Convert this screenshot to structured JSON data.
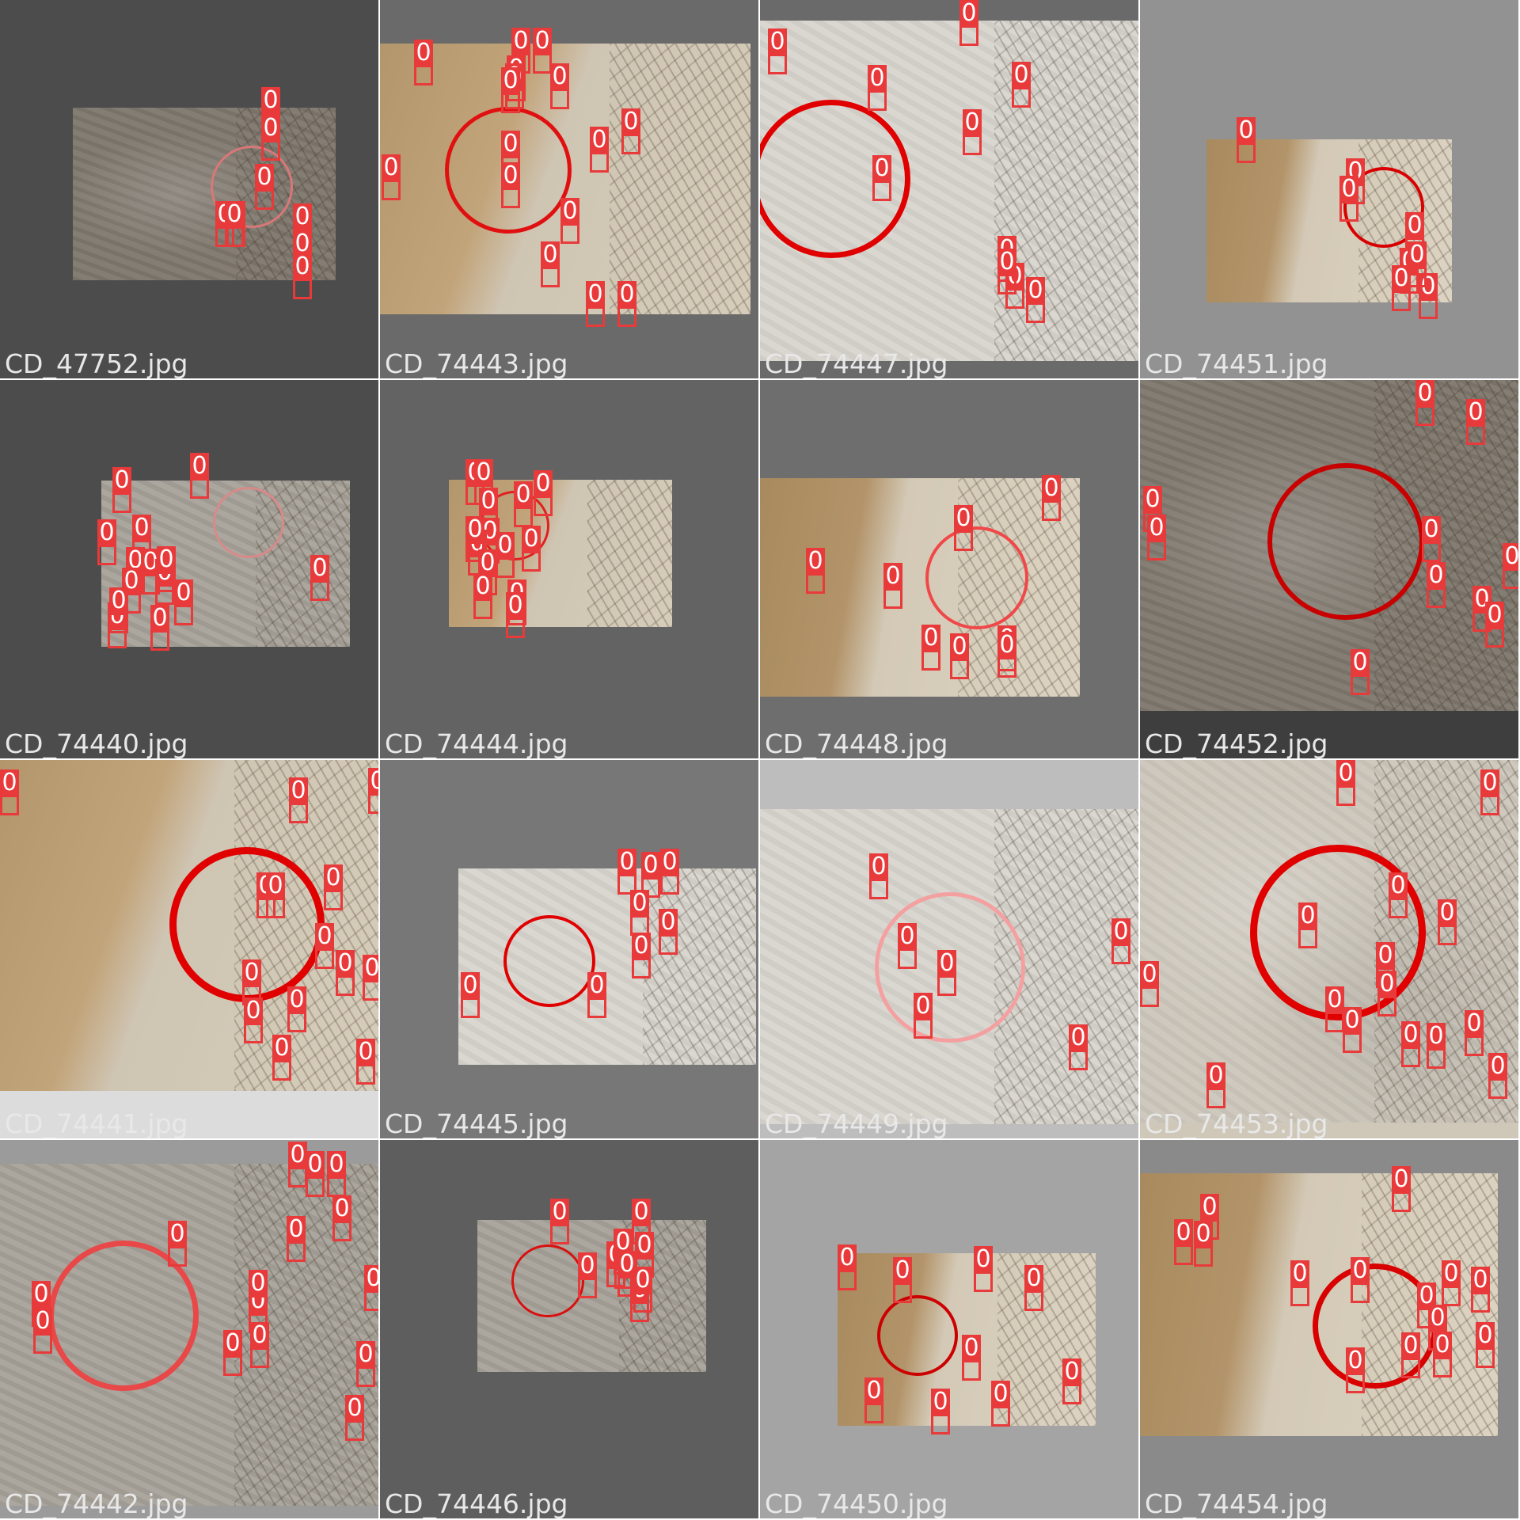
{
  "label_color": "#e83a3a",
  "class_label": "0",
  "tiles": [
    {
      "filename": "CD_47752.jpg",
      "bg": "#4c4c4c",
      "photo_style": "sand-c",
      "ring_color": "#d87878",
      "boxes": 9
    },
    {
      "filename": "CD_74443.jpg",
      "bg": "#6a6a6a",
      "photo_style": "sand-b",
      "ring_color": "#e01010",
      "boxes": 16
    },
    {
      "filename": "CD_74447.jpg",
      "bg": "#6a6a6a",
      "photo_style": "sand-d",
      "ring_color": "#e00000",
      "boxes": 10
    },
    {
      "filename": "CD_74451.jpg",
      "bg": "#929292",
      "photo_style": "sand-f",
      "ring_color": "#d80000",
      "boxes": 8
    },
    {
      "filename": "CD_74440.jpg",
      "bg": "#4c4c4c",
      "photo_style": "sand-e",
      "ring_color": "#d88a8a",
      "boxes": 14
    },
    {
      "filename": "CD_74444.jpg",
      "bg": "#636363",
      "photo_style": "sand-b",
      "ring_color": "#e02020",
      "boxes": 14
    },
    {
      "filename": "CD_74448.jpg",
      "bg": "#6e6e6e",
      "photo_style": "sand-f",
      "ring_color": "#f04848",
      "boxes": 8
    },
    {
      "filename": "CD_74452.jpg",
      "bg": "#3e3e3e",
      "photo_style": "sand-c",
      "ring_color": "#c80000",
      "boxes": 10
    },
    {
      "filename": "CD_74441.jpg",
      "bg": "#dcdcdc",
      "photo_style": "sand-b",
      "ring_color": "#e00000",
      "boxes": 14
    },
    {
      "filename": "CD_74445.jpg",
      "bg": "#777777",
      "photo_style": "sand-d",
      "ring_color": "#e00000",
      "boxes": 10
    },
    {
      "filename": "CD_74449.jpg",
      "bg": "#bdbdbd",
      "photo_style": "sand-d",
      "ring_color": "#f4a0a0",
      "boxes": 7
    },
    {
      "filename": "CD_74453.jpg",
      "bg": "#cfc7b8",
      "photo_style": "sand-a",
      "ring_color": "#e00000",
      "boxes": 15
    },
    {
      "filename": "CD_74442.jpg",
      "bg": "#9b9b9b",
      "photo_style": "sand-e",
      "ring_color": "#e84848",
      "boxes": 15
    },
    {
      "filename": "CD_74446.jpg",
      "bg": "#5e5e5e",
      "photo_style": "sand-e",
      "ring_color": "#d81010",
      "boxes": 10
    },
    {
      "filename": "CD_74450.jpg",
      "bg": "#a4a4a4",
      "photo_style": "sand-f",
      "ring_color": "#cc0000",
      "boxes": 9
    },
    {
      "filename": "CD_74454.jpg",
      "bg": "#8a8a8a",
      "photo_style": "sand-f",
      "ring_color": "#d80000",
      "boxes": 14
    }
  ]
}
